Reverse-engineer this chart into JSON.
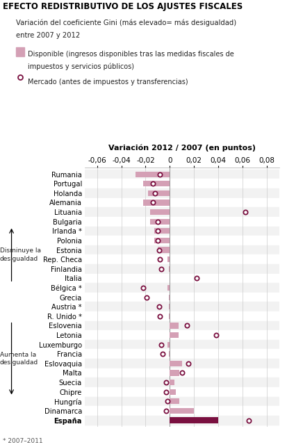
{
  "title": "EFECTO REDISTRIBUTIVO DE LOS AJUSTES FISCALES",
  "subtitle1": "Variación del coeficiente Gini (más elevado= más desigualdad)",
  "subtitle2": "entre 2007 y 2012",
  "legend_bar_text1": "Disponible (ingresos disponibles tras las medidas fiscales de",
  "legend_bar_text2": "impuestos y servicios públicos)",
  "legend_circle_text": "Mercado (antes de impuestos y transferencias)",
  "axis_title": "Variación 2012 / 2007 (en puntos)",
  "footnote": "* 2007–2011",
  "countries": [
    "Rumania",
    "Portugal",
    "Holanda",
    "Alemania",
    "Lituania",
    "Bulgaria",
    "Irlanda *",
    "Polonia",
    "Estonia",
    "Rep. Checa",
    "Finlandia",
    "Italia",
    "Bélgica *",
    "Grecia",
    "Austria *",
    "R. Unido *",
    "Eslovenia",
    "Letonia",
    "Luxemburgo",
    "Francia",
    "Eslovaquia",
    "Malta",
    "Suecia",
    "Chipre",
    "Hungría",
    "Dinamarca",
    "España"
  ],
  "bar_values": [
    -0.028,
    -0.022,
    -0.018,
    -0.022,
    -0.016,
    -0.016,
    -0.013,
    -0.013,
    -0.01,
    -0.002,
    -0.001,
    0.0,
    -0.002,
    -0.001,
    -0.001,
    -0.001,
    0.007,
    0.007,
    -0.002,
    -0.001,
    0.01,
    0.008,
    0.004,
    0.005,
    0.008,
    0.02,
    0.04
  ],
  "circle_values": [
    -0.008,
    -0.014,
    -0.012,
    -0.014,
    0.062,
    -0.01,
    -0.01,
    -0.01,
    -0.009,
    -0.008,
    -0.007,
    0.022,
    -0.022,
    -0.019,
    -0.009,
    -0.008,
    0.014,
    0.038,
    -0.007,
    -0.006,
    0.015,
    0.01,
    -0.003,
    -0.003,
    -0.002,
    -0.003,
    0.065
  ],
  "bar_color_default": "#d4a0b5",
  "bar_color_espana": "#7a1040",
  "circle_color": "#7a1040",
  "xlim": [
    -0.07,
    0.09
  ],
  "xticks": [
    -0.06,
    -0.04,
    -0.02,
    0,
    0.02,
    0.04,
    0.06,
    0.08
  ],
  "label_disminuye": "Disminuye la\ndesigualdad",
  "label_aumenta": "Aumenta la\ndesigualdad",
  "disminuye_rows": [
    6,
    11
  ],
  "aumenta_rows": [
    17,
    24
  ]
}
